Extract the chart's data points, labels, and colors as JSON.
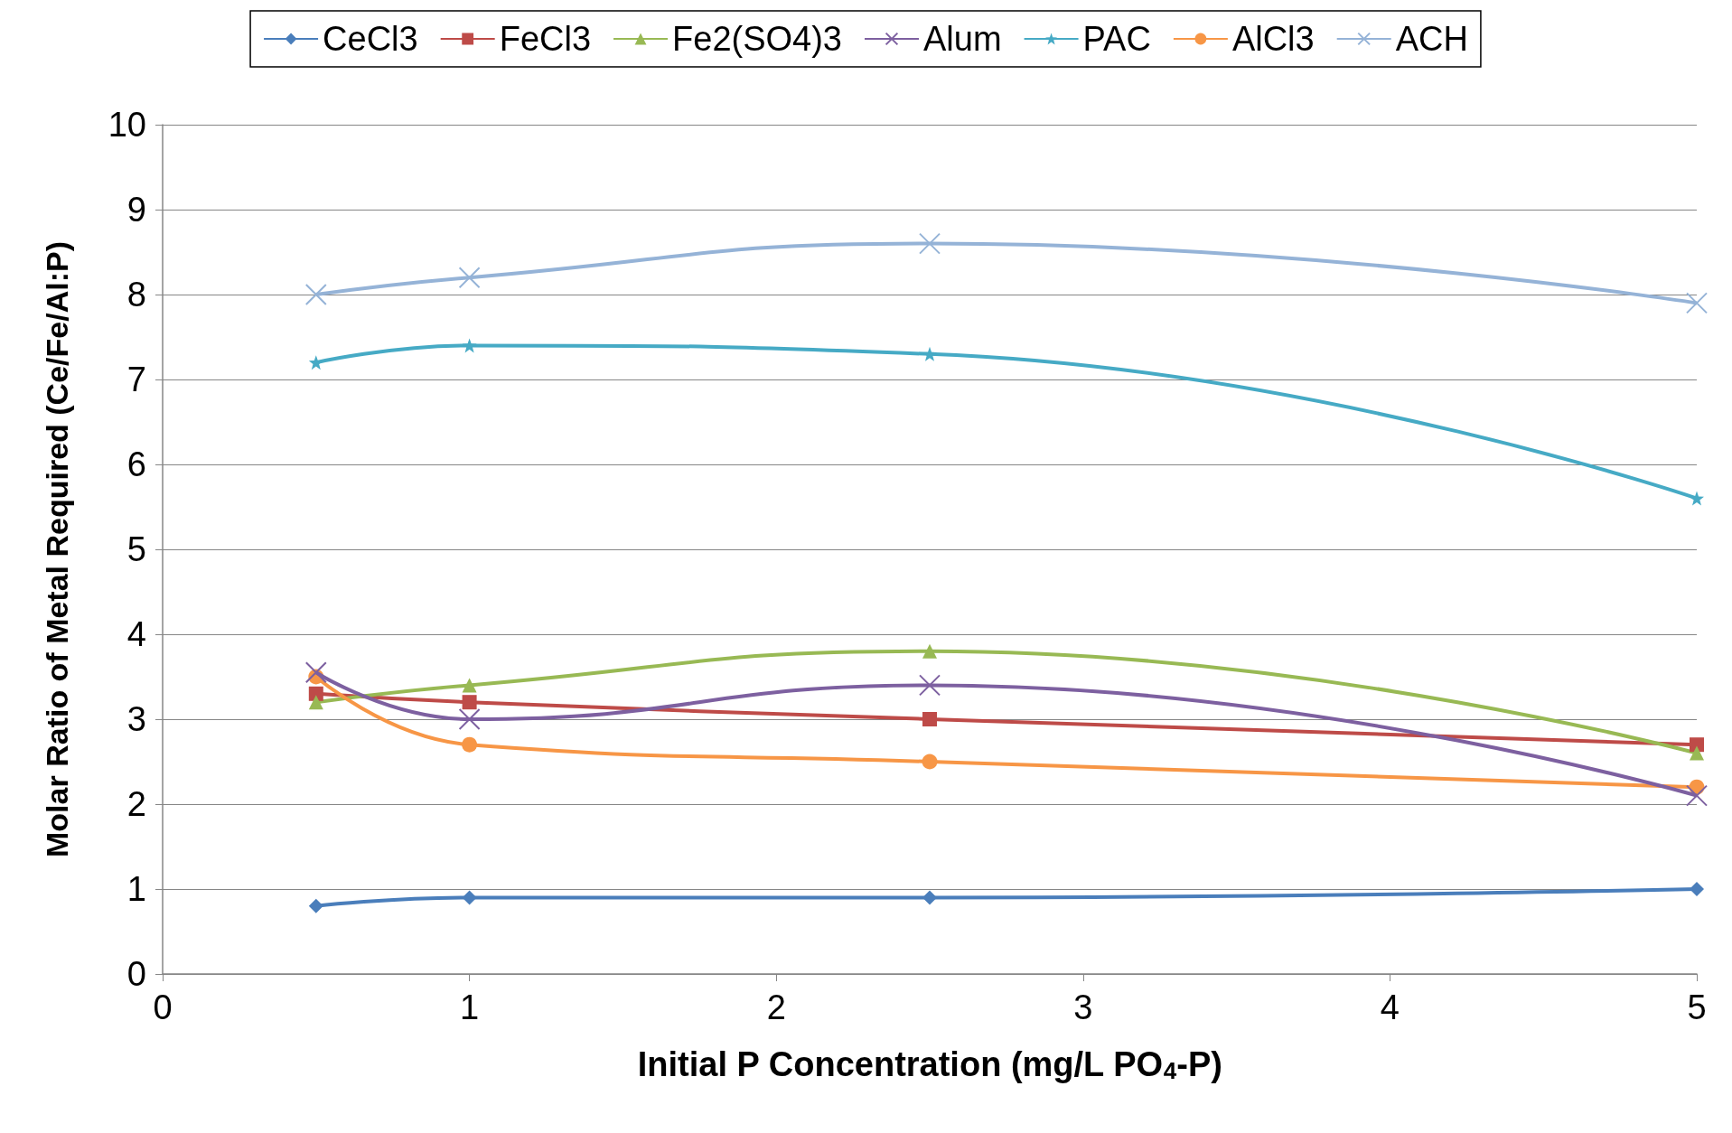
{
  "chart_data": {
    "type": "line",
    "xlabel": "Initial P Concentration (mg/L PO$_{4}$-P)",
    "ylabel": "Molar Ratio of Metal Required (Ce/Fe/Al:P)",
    "x": [
      0.5,
      1,
      2.5,
      5
    ],
    "series": [
      {
        "name": "CeCl3",
        "color": "#4a7ebb",
        "marker": "diamond",
        "values": [
          0.8,
          0.9,
          0.9,
          1.0
        ]
      },
      {
        "name": "FeCl3",
        "color": "#be4b48",
        "marker": "square",
        "values": [
          3.3,
          3.2,
          3.0,
          2.7
        ]
      },
      {
        "name": "Fe2(SO4)3",
        "color": "#98b954",
        "marker": "triangle",
        "values": [
          3.2,
          3.4,
          3.8,
          2.6
        ]
      },
      {
        "name": "Alum",
        "color": "#7d60a0",
        "marker": "cross",
        "values": [
          3.55,
          3.0,
          3.4,
          2.1
        ]
      },
      {
        "name": "PAC",
        "color": "#46aac5",
        "marker": "star",
        "values": [
          7.2,
          7.4,
          7.3,
          5.6
        ]
      },
      {
        "name": "AlCl3",
        "color": "#f79646",
        "marker": "circle",
        "values": [
          3.5,
          2.7,
          2.5,
          2.2
        ]
      },
      {
        "name": "ACH",
        "color": "#95b3d7",
        "marker": "cross",
        "values": [
          8.0,
          8.2,
          8.6,
          7.9
        ]
      }
    ],
    "xlim": [
      0,
      5
    ],
    "xticks": [
      0,
      1,
      2,
      3,
      4,
      5
    ],
    "ylim": [
      0,
      10
    ],
    "yticks": [
      0,
      1,
      2,
      3,
      4,
      5,
      6,
      7,
      8,
      9,
      10
    ],
    "grid": "y",
    "legend": "top"
  }
}
